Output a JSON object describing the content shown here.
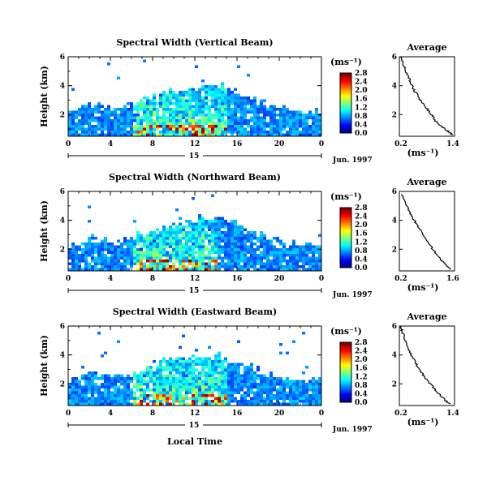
{
  "figure": {
    "date_label": "Jun. 1997",
    "xlabel_bottom": "Local Time",
    "unit_label": "(ms⁻¹)"
  },
  "chart_data": [
    {
      "type": "heatmap",
      "title": "Spectral Width (Vertical Beam)",
      "ylabel": "Height (km)",
      "xlim": [
        0,
        24
      ],
      "ylim": [
        0.5,
        6
      ],
      "x_ticks": [
        "0",
        "4",
        "8",
        "12",
        "16",
        "20",
        "0"
      ],
      "y_ticks": [
        "2",
        "4",
        "6"
      ],
      "day_label": "15",
      "colorbar": {
        "label": "(ms⁻¹)",
        "ticks": [
          "0.0",
          "0.4",
          "0.8",
          "1.2",
          "1.6",
          "2.0",
          "2.4",
          "2.8"
        ]
      },
      "echo_top_km": [
        [
          0,
          2.2
        ],
        [
          2,
          2.8
        ],
        [
          4,
          2.6
        ],
        [
          6,
          2.9
        ],
        [
          8,
          3.3
        ],
        [
          10,
          3.9
        ],
        [
          12,
          3.8
        ],
        [
          14,
          4.2
        ],
        [
          16,
          3.6
        ],
        [
          18,
          3.0
        ],
        [
          20,
          2.6
        ],
        [
          22,
          2.4
        ],
        [
          24,
          2.2
        ]
      ],
      "hot_zone_hours": [
        6,
        15
      ],
      "average": {
        "title": "Average",
        "xlabel": "(ms⁻¹)",
        "x_ticks": [
          "0.2",
          "1.4"
        ],
        "y_ticks": [
          "2",
          "4",
          "6"
        ],
        "xlim": [
          0.2,
          1.4
        ],
        "ylim": [
          0.5,
          6
        ],
        "profile": [
          [
            1.35,
            0.6
          ],
          [
            1.2,
            1.0
          ],
          [
            1.0,
            1.5
          ],
          [
            0.9,
            2.0
          ],
          [
            0.75,
            2.6
          ],
          [
            0.62,
            3.2
          ],
          [
            0.5,
            3.8
          ],
          [
            0.42,
            4.4
          ],
          [
            0.35,
            5.0
          ],
          [
            0.28,
            5.5
          ],
          [
            0.22,
            6.0
          ]
        ]
      }
    },
    {
      "type": "heatmap",
      "title": "Spectral Width (Northward Beam)",
      "ylabel": "Height (km)",
      "xlim": [
        0,
        24
      ],
      "ylim": [
        0.5,
        6
      ],
      "x_ticks": [
        "0",
        "4",
        "8",
        "12",
        "16",
        "20",
        "0"
      ],
      "y_ticks": [
        "2",
        "4",
        "6"
      ],
      "day_label": "15",
      "colorbar": {
        "label": "(ms⁻¹)",
        "ticks": [
          "0.0",
          "0.4",
          "0.8",
          "1.2",
          "1.6",
          "2.0",
          "2.4",
          "2.8"
        ]
      },
      "echo_top_km": [
        [
          0,
          2.3
        ],
        [
          2,
          2.9
        ],
        [
          4,
          2.7
        ],
        [
          6,
          3.0
        ],
        [
          8,
          3.4
        ],
        [
          10,
          3.8
        ],
        [
          12,
          4.0
        ],
        [
          14,
          4.4
        ],
        [
          16,
          3.8
        ],
        [
          18,
          3.1
        ],
        [
          20,
          2.7
        ],
        [
          22,
          2.5
        ],
        [
          24,
          2.3
        ]
      ],
      "hot_zone_hours": [
        6,
        14
      ],
      "average": {
        "title": "Average",
        "xlabel": "(ms⁻¹)",
        "x_ticks": [
          "0.2",
          "1.6"
        ],
        "y_ticks": [
          "2",
          "4",
          "6"
        ],
        "xlim": [
          0.2,
          1.6
        ],
        "ylim": [
          0.5,
          6
        ],
        "profile": [
          [
            1.5,
            0.6
          ],
          [
            1.35,
            1.0
          ],
          [
            1.15,
            1.6
          ],
          [
            1.0,
            2.2
          ],
          [
            0.85,
            2.8
          ],
          [
            0.7,
            3.4
          ],
          [
            0.58,
            4.0
          ],
          [
            0.45,
            4.6
          ],
          [
            0.35,
            5.2
          ],
          [
            0.25,
            5.8
          ]
        ]
      }
    },
    {
      "type": "heatmap",
      "title": "Spectral Width (Eastward Beam)",
      "ylabel": "Height (km)",
      "xlim": [
        0,
        24
      ],
      "ylim": [
        0.5,
        6
      ],
      "x_ticks": [
        "0",
        "4",
        "8",
        "12",
        "16",
        "20",
        "0"
      ],
      "y_ticks": [
        "2",
        "4",
        "6"
      ],
      "day_label": "15",
      "colorbar": {
        "label": "(ms⁻¹)",
        "ticks": [
          "0.0",
          "0.4",
          "0.8",
          "1.2",
          "1.6",
          "2.0",
          "2.4",
          "2.8"
        ]
      },
      "echo_top_km": [
        [
          0,
          2.3
        ],
        [
          2,
          2.8
        ],
        [
          4,
          2.7
        ],
        [
          6,
          2.9
        ],
        [
          8,
          3.4
        ],
        [
          10,
          3.9
        ],
        [
          12,
          4.1
        ],
        [
          14,
          4.1
        ],
        [
          16,
          3.5
        ],
        [
          18,
          3.0
        ],
        [
          20,
          2.6
        ],
        [
          22,
          2.4
        ],
        [
          24,
          2.4
        ]
      ],
      "hot_zone_hours": [
        6,
        15
      ],
      "average": {
        "title": "Average",
        "xlabel": "(ms⁻¹)",
        "x_ticks": [
          "0.2",
          "1.4"
        ],
        "y_ticks": [
          "2",
          "4",
          "6"
        ],
        "xlim": [
          0.2,
          1.4
        ],
        "ylim": [
          0.5,
          6
        ],
        "profile": [
          [
            1.3,
            0.6
          ],
          [
            1.15,
            1.0
          ],
          [
            1.0,
            1.5
          ],
          [
            0.88,
            2.0
          ],
          [
            0.72,
            2.6
          ],
          [
            0.6,
            3.2
          ],
          [
            0.5,
            3.8
          ],
          [
            0.4,
            4.4
          ],
          [
            0.34,
            5.0
          ],
          [
            0.26,
            5.6
          ],
          [
            0.22,
            6.0
          ]
        ]
      }
    }
  ]
}
